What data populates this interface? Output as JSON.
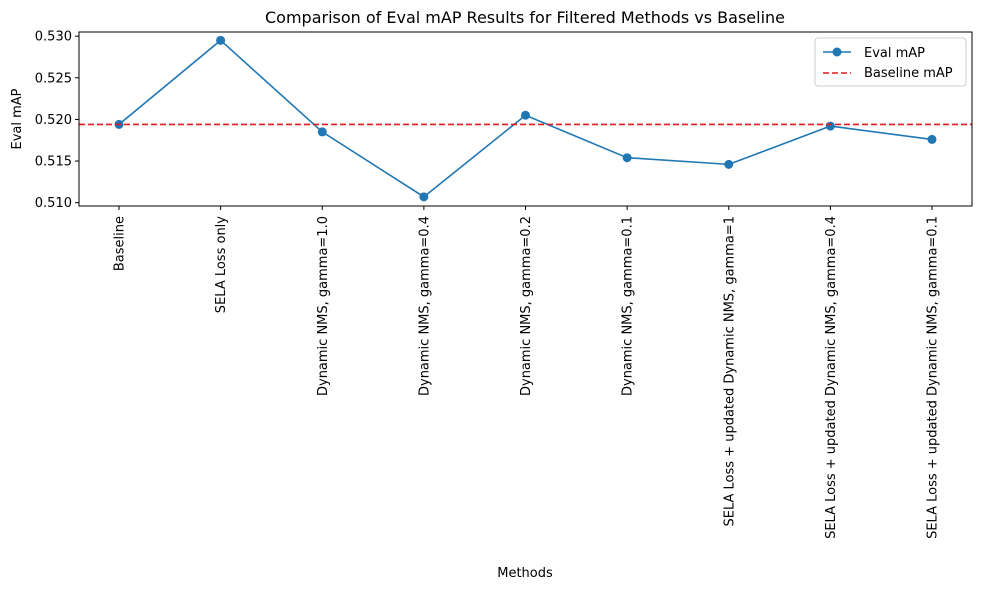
{
  "chart_data": {
    "type": "line",
    "title": "Comparison of Eval mAP Results for Filtered Methods vs Baseline",
    "xlabel": "Methods",
    "ylabel": "Eval mAP",
    "categories": [
      "Baseline",
      "SELA Loss only",
      "Dynamic NMS, gamma=1.0",
      "Dynamic NMS, gamma=0.4",
      "Dynamic NMS, gamma=0.2",
      "Dynamic NMS, gamma=0.1",
      "SELA Loss + updated Dynamic NMS, gamma=1",
      "SELA Loss + updated Dynamic NMS, gamma=0.4",
      "SELA Loss + updated Dynamic NMS, gamma=0.1"
    ],
    "series": [
      {
        "name": "Eval mAP",
        "color": "#1f77b4",
        "values": [
          0.5194,
          0.5295,
          0.5185,
          0.5107,
          0.5205,
          0.5154,
          0.5146,
          0.5192,
          0.5176
        ]
      }
    ],
    "reference_line": {
      "name": "Baseline mAP",
      "value": 0.5194,
      "color": "#e31a1c",
      "style": "dashed"
    },
    "yticks": [
      "0.510",
      "0.515",
      "0.520",
      "0.525",
      "0.530"
    ],
    "ylim": [
      0.5096,
      0.5305
    ],
    "grid": false,
    "legend": "top-right"
  }
}
